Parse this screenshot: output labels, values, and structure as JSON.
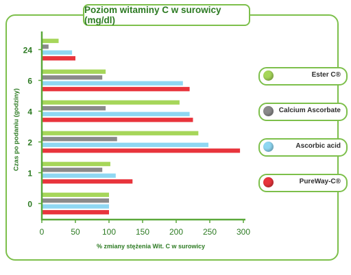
{
  "chart_data": {
    "type": "bar",
    "orientation": "horizontal",
    "title": "Poziom witaminy C w surowicy (mg/dl)",
    "xlabel": "% zmiany stężenia Wit. C w surowicy",
    "ylabel": "Czas po podaniu (godziny)",
    "xlim": [
      0,
      300
    ],
    "xticks": [
      0,
      50,
      100,
      150,
      200,
      250,
      300
    ],
    "categories": [
      "24",
      "6",
      "4",
      "2",
      "1",
      "0"
    ],
    "series": [
      {
        "name": "Ester C®",
        "color": "#a6d65a",
        "values": [
          25,
          95,
          205,
          233,
          102,
          100
        ]
      },
      {
        "name": "Calcium Ascorbate",
        "color": "#8a8a8a",
        "values": [
          10,
          90,
          95,
          112,
          90,
          100
        ]
      },
      {
        "name": "Ascorbic acid",
        "color": "#8fd7f2",
        "values": [
          45,
          210,
          220,
          248,
          110,
          100
        ]
      },
      {
        "name": "PureWay-C®",
        "color": "#e8343c",
        "values": [
          50,
          220,
          225,
          295,
          135,
          100
        ]
      }
    ],
    "legend_position": "right"
  }
}
